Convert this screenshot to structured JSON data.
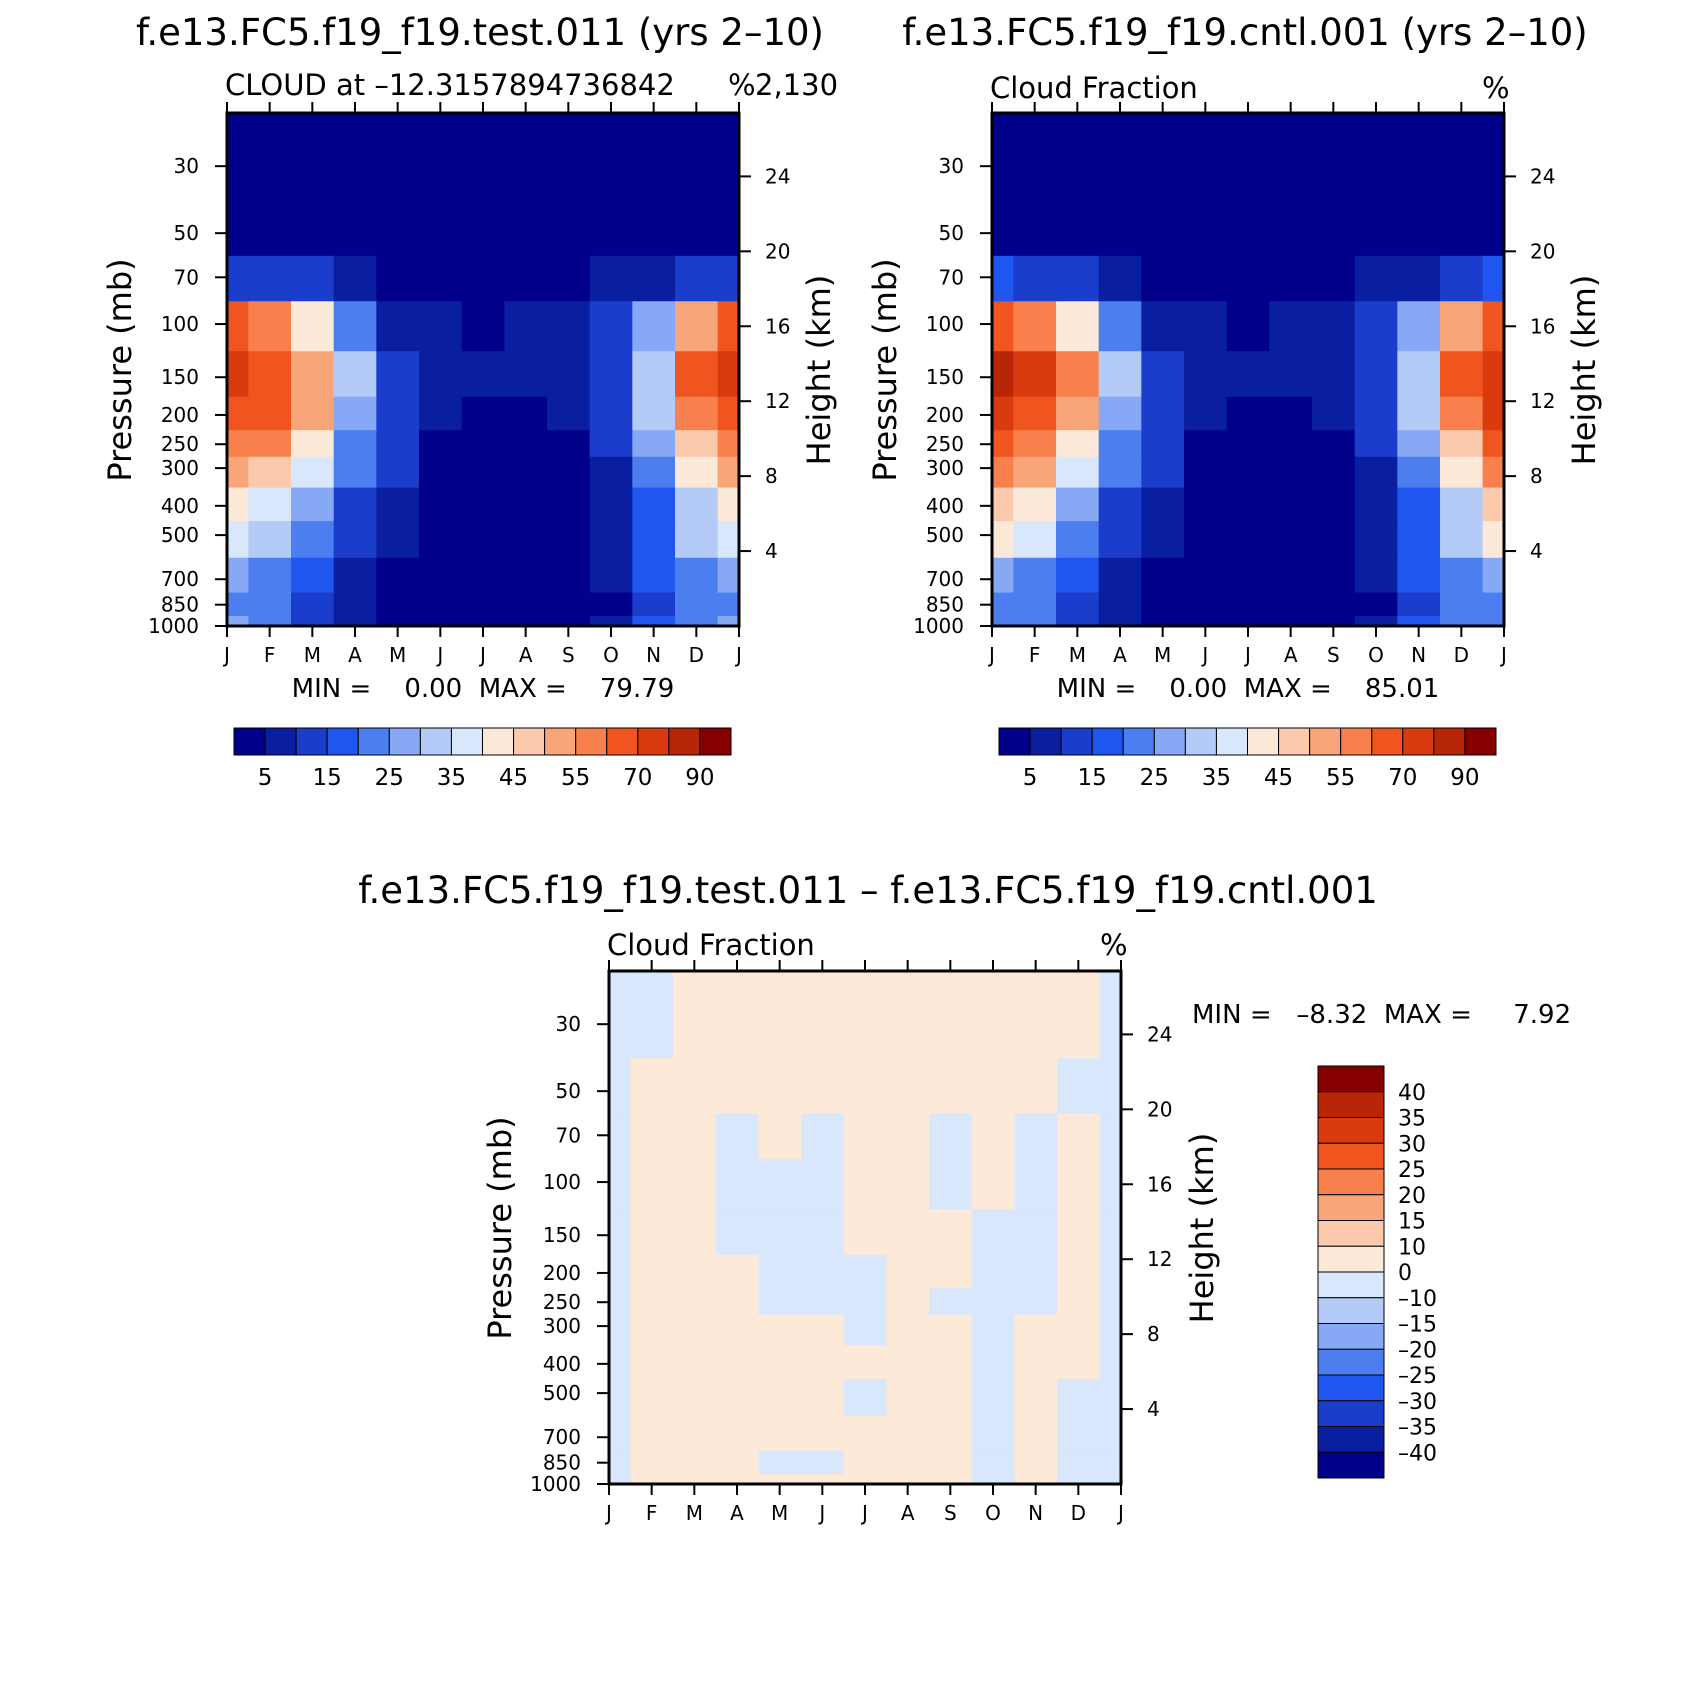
{
  "figure": {
    "bottom_title": "f.e13.FC5.f19_f19.test.011 – f.e13.FC5.f19_f19.cntl.001"
  },
  "colors": {
    "abs_scale": [
      "#00008b",
      "#0a1fa0",
      "#1a3dcc",
      "#1f56f0",
      "#4c7ef0",
      "#87a9f5",
      "#b4cbf7",
      "#d8e7fb",
      "#fde9d8",
      "#fbc9ab",
      "#f9a57a",
      "#f7804c",
      "#f0541f",
      "#d93a0e",
      "#b82608",
      "#870000"
    ],
    "diff_scale": [
      "#00008b",
      "#0a1fa0",
      "#1a3dcc",
      "#1f56f0",
      "#4c7ef0",
      "#87a9f5",
      "#b4cbf7",
      "#d8e7fb",
      "#fde9d8",
      "#fbc9ab",
      "#f9a57a",
      "#f7804c",
      "#f0541f",
      "#d93a0e",
      "#b82608",
      "#870000"
    ]
  },
  "chart_data": [
    {
      "type": "heatmap",
      "title": "f.e13.FC5.f19_f19.test.011 (yrs 2–10)",
      "subtitle_left": "CLOUD at –12.3157894736842",
      "subtitle_right": "%",
      "subtitle_tail": "2,130",
      "ylabel": "Pressure (mb)",
      "ylabel_right": "Height (km)",
      "x_ticks": [
        "J",
        "F",
        "M",
        "A",
        "M",
        "J",
        "J",
        "A",
        "S",
        "O",
        "N",
        "D",
        "J"
      ],
      "y_ticks": [
        "30",
        "50",
        "70",
        "100",
        "150",
        "200",
        "250",
        "300",
        "400",
        "500",
        "700",
        "850",
        "1000"
      ],
      "y_ticks_right": [
        "24",
        "20",
        "16",
        "12",
        "8",
        "4"
      ],
      "y_scale": "log",
      "ylim": [
        1000,
        20
      ],
      "min_label": "MIN =    0.00  MAX =    79.79",
      "min": 0.0,
      "max": 79.79,
      "colorbar_labels": [
        "5",
        "15",
        "25",
        "35",
        "45",
        "55",
        "70",
        "90"
      ],
      "colorbar_levels": [
        0,
        5,
        10,
        15,
        20,
        25,
        30,
        35,
        40,
        45,
        50,
        55,
        60,
        70,
        80,
        90,
        100
      ],
      "pressure_levels": [
        1000,
        850,
        700,
        500,
        400,
        300,
        250,
        200,
        150,
        100,
        70,
        50,
        30,
        20
      ],
      "months": [
        0,
        1,
        2,
        3,
        4,
        5,
        6,
        7,
        8,
        9,
        10,
        11,
        12
      ],
      "values": [
        [
          25,
          22,
          14,
          8,
          3,
          1,
          1,
          1,
          1,
          5,
          16,
          22,
          25
        ],
        [
          22,
          20,
          13,
          7,
          3,
          1,
          1,
          1,
          1,
          4,
          14,
          20,
          22
        ],
        [
          28,
          24,
          16,
          9,
          4,
          1,
          1,
          1,
          1,
          5,
          15,
          24,
          28
        ],
        [
          38,
          34,
          22,
          12,
          6,
          2,
          1,
          1,
          2,
          6,
          16,
          30,
          38
        ],
        [
          44,
          38,
          26,
          14,
          7,
          2,
          1,
          1,
          2,
          7,
          18,
          34,
          44
        ],
        [
          52,
          48,
          38,
          20,
          10,
          3,
          1,
          1,
          2,
          8,
          22,
          42,
          52
        ],
        [
          58,
          55,
          44,
          24,
          12,
          4,
          1,
          1,
          3,
          10,
          26,
          48,
          58
        ],
        [
          66,
          62,
          50,
          28,
          14,
          6,
          2,
          3,
          5,
          12,
          30,
          55,
          66
        ],
        [
          72,
          68,
          54,
          30,
          14,
          8,
          6,
          8,
          9,
          14,
          34,
          62,
          72
        ],
        [
          60,
          55,
          42,
          20,
          9,
          5,
          3,
          5,
          7,
          12,
          28,
          52,
          60
        ],
        [
          14,
          13,
          10,
          6,
          3,
          1,
          1,
          1,
          2,
          6,
          9,
          12,
          14
        ],
        [
          2,
          2,
          1,
          1,
          1,
          1,
          1,
          1,
          1,
          1,
          1,
          2,
          2
        ],
        [
          1,
          1,
          1,
          1,
          1,
          1,
          1,
          1,
          1,
          1,
          1,
          1,
          1
        ],
        [
          1,
          1,
          1,
          1,
          1,
          1,
          1,
          1,
          1,
          1,
          1,
          1,
          1
        ]
      ]
    },
    {
      "type": "heatmap",
      "title": "f.e13.FC5.f19_f19.cntl.001 (yrs 2–10)",
      "subtitle_left": "Cloud Fraction",
      "subtitle_right": "%",
      "ylabel": "Pressure (mb)",
      "ylabel_right": "Height (km)",
      "x_ticks": [
        "J",
        "F",
        "M",
        "A",
        "M",
        "J",
        "J",
        "A",
        "S",
        "O",
        "N",
        "D",
        "J"
      ],
      "y_ticks": [
        "30",
        "50",
        "70",
        "100",
        "150",
        "200",
        "250",
        "300",
        "400",
        "500",
        "700",
        "850",
        "1000"
      ],
      "y_ticks_right": [
        "24",
        "20",
        "16",
        "12",
        "8",
        "4"
      ],
      "y_scale": "log",
      "ylim": [
        1000,
        20
      ],
      "min_label": "MIN =    0.00  MAX =    85.01",
      "min": 0.0,
      "max": 85.01,
      "colorbar_labels": [
        "5",
        "15",
        "25",
        "35",
        "45",
        "55",
        "70",
        "90"
      ],
      "colorbar_levels": [
        0,
        5,
        10,
        15,
        20,
        25,
        30,
        35,
        40,
        45,
        50,
        55,
        60,
        70,
        80,
        90,
        100
      ],
      "pressure_levels": [
        1000,
        850,
        700,
        500,
        400,
        300,
        250,
        200,
        150,
        100,
        70,
        50,
        30,
        20
      ],
      "months": [
        0,
        1,
        2,
        3,
        4,
        5,
        6,
        7,
        8,
        9,
        10,
        11,
        12
      ],
      "values": [
        [
          24,
          22,
          14,
          8,
          3,
          1,
          1,
          1,
          1,
          5,
          16,
          22,
          24
        ],
        [
          21,
          20,
          13,
          7,
          3,
          1,
          1,
          1,
          1,
          4,
          14,
          20,
          21
        ],
        [
          27,
          24,
          16,
          9,
          4,
          1,
          1,
          1,
          1,
          5,
          15,
          24,
          27
        ],
        [
          40,
          36,
          22,
          12,
          6,
          2,
          1,
          1,
          2,
          6,
          16,
          30,
          40
        ],
        [
          45,
          40,
          26,
          14,
          7,
          2,
          1,
          1,
          2,
          7,
          18,
          34,
          45
        ],
        [
          55,
          50,
          38,
          20,
          10,
          3,
          1,
          1,
          2,
          8,
          22,
          42,
          55
        ],
        [
          62,
          58,
          44,
          24,
          12,
          4,
          1,
          1,
          3,
          10,
          26,
          48,
          62
        ],
        [
          70,
          66,
          52,
          28,
          14,
          6,
          2,
          3,
          5,
          12,
          30,
          56,
          70
        ],
        [
          82,
          74,
          56,
          30,
          14,
          8,
          6,
          8,
          9,
          14,
          34,
          64,
          74
        ],
        [
          64,
          58,
          42,
          20,
          9,
          5,
          3,
          5,
          7,
          12,
          28,
          54,
          64
        ],
        [
          16,
          14,
          10,
          6,
          3,
          1,
          1,
          1,
          2,
          6,
          9,
          14,
          16
        ],
        [
          3,
          2,
          1,
          1,
          1,
          1,
          1,
          1,
          1,
          1,
          1,
          2,
          3
        ],
        [
          1,
          1,
          1,
          1,
          1,
          1,
          1,
          1,
          1,
          1,
          1,
          1,
          1
        ],
        [
          1,
          1,
          1,
          1,
          1,
          1,
          1,
          1,
          1,
          1,
          1,
          1,
          1
        ]
      ]
    },
    {
      "type": "heatmap",
      "title": "f.e13.FC5.f19_f19.test.011 – f.e13.FC5.f19_f19.cntl.001",
      "subtitle_left": "Cloud Fraction",
      "subtitle_right": "%",
      "ylabel": "Pressure (mb)",
      "ylabel_right": "Height (km)",
      "x_ticks": [
        "J",
        "F",
        "M",
        "A",
        "M",
        "J",
        "J",
        "A",
        "S",
        "O",
        "N",
        "D",
        "J"
      ],
      "y_ticks": [
        "30",
        "50",
        "70",
        "100",
        "150",
        "200",
        "250",
        "300",
        "400",
        "500",
        "700",
        "850",
        "1000"
      ],
      "y_ticks_right": [
        "24",
        "20",
        "16",
        "12",
        "8",
        "4"
      ],
      "y_scale": "log",
      "ylim": [
        1000,
        20
      ],
      "min_label": "MIN =   –8.32  MAX =     7.92",
      "min": -8.32,
      "max": 7.92,
      "colorbar_labels": [
        "40",
        "35",
        "30",
        "25",
        "20",
        "15",
        "10",
        "0",
        "–10",
        "–15",
        "–20",
        "–25",
        "–30",
        "–35",
        "–40"
      ],
      "colorbar_levels": [
        -50,
        -40,
        -35,
        -30,
        -25,
        -20,
        -15,
        -10,
        0,
        10,
        15,
        20,
        25,
        30,
        35,
        40,
        50
      ],
      "pressure_levels": [
        1000,
        850,
        700,
        500,
        400,
        300,
        250,
        200,
        150,
        100,
        70,
        50,
        30,
        20
      ],
      "months": [
        0,
        1,
        2,
        3,
        4,
        5,
        6,
        7,
        8,
        9,
        10,
        11,
        12
      ],
      "values": [
        [
          -1,
          1,
          1,
          1,
          1,
          1,
          1,
          1,
          1,
          -1,
          1,
          -1,
          -1
        ],
        [
          -1,
          1,
          1,
          1,
          -1,
          -1,
          1,
          1,
          1,
          -1,
          1,
          -1,
          -1
        ],
        [
          -1,
          1,
          1,
          1,
          1,
          1,
          1,
          1,
          1,
          -1,
          1,
          -1,
          -1
        ],
        [
          -1,
          1,
          1,
          1,
          1,
          1,
          -1,
          1,
          1,
          -1,
          1,
          -1,
          -1
        ],
        [
          -1,
          1,
          1,
          1,
          1,
          1,
          1,
          1,
          1,
          -1,
          1,
          1,
          -1
        ],
        [
          -1,
          1,
          1,
          1,
          1,
          1,
          -1,
          1,
          1,
          -1,
          1,
          1,
          -1
        ],
        [
          -1,
          1,
          1,
          1,
          -1,
          -1,
          -1,
          1,
          -1,
          -1,
          -1,
          1,
          -1
        ],
        [
          -1,
          1,
          1,
          1,
          -1,
          -1,
          -1,
          1,
          1,
          -1,
          -1,
          1,
          -1
        ],
        [
          -1,
          1,
          1,
          -1,
          -1,
          -1,
          1,
          1,
          1,
          -1,
          -1,
          1,
          -1
        ],
        [
          -1,
          1,
          1,
          -1,
          -1,
          -1,
          1,
          1,
          -1,
          1,
          -1,
          1,
          -1
        ],
        [
          -1,
          1,
          1,
          -1,
          1,
          -1,
          1,
          1,
          -1,
          1,
          -1,
          1,
          -1
        ],
        [
          -1,
          1,
          1,
          1,
          1,
          1,
          1,
          1,
          1,
          1,
          1,
          -1,
          -1
        ],
        [
          -1,
          -1,
          1,
          1,
          1,
          1,
          1,
          1,
          1,
          1,
          1,
          1,
          -1
        ],
        [
          -1,
          -1,
          1,
          1,
          1,
          1,
          1,
          1,
          1,
          1,
          1,
          1,
          -1
        ]
      ]
    }
  ]
}
